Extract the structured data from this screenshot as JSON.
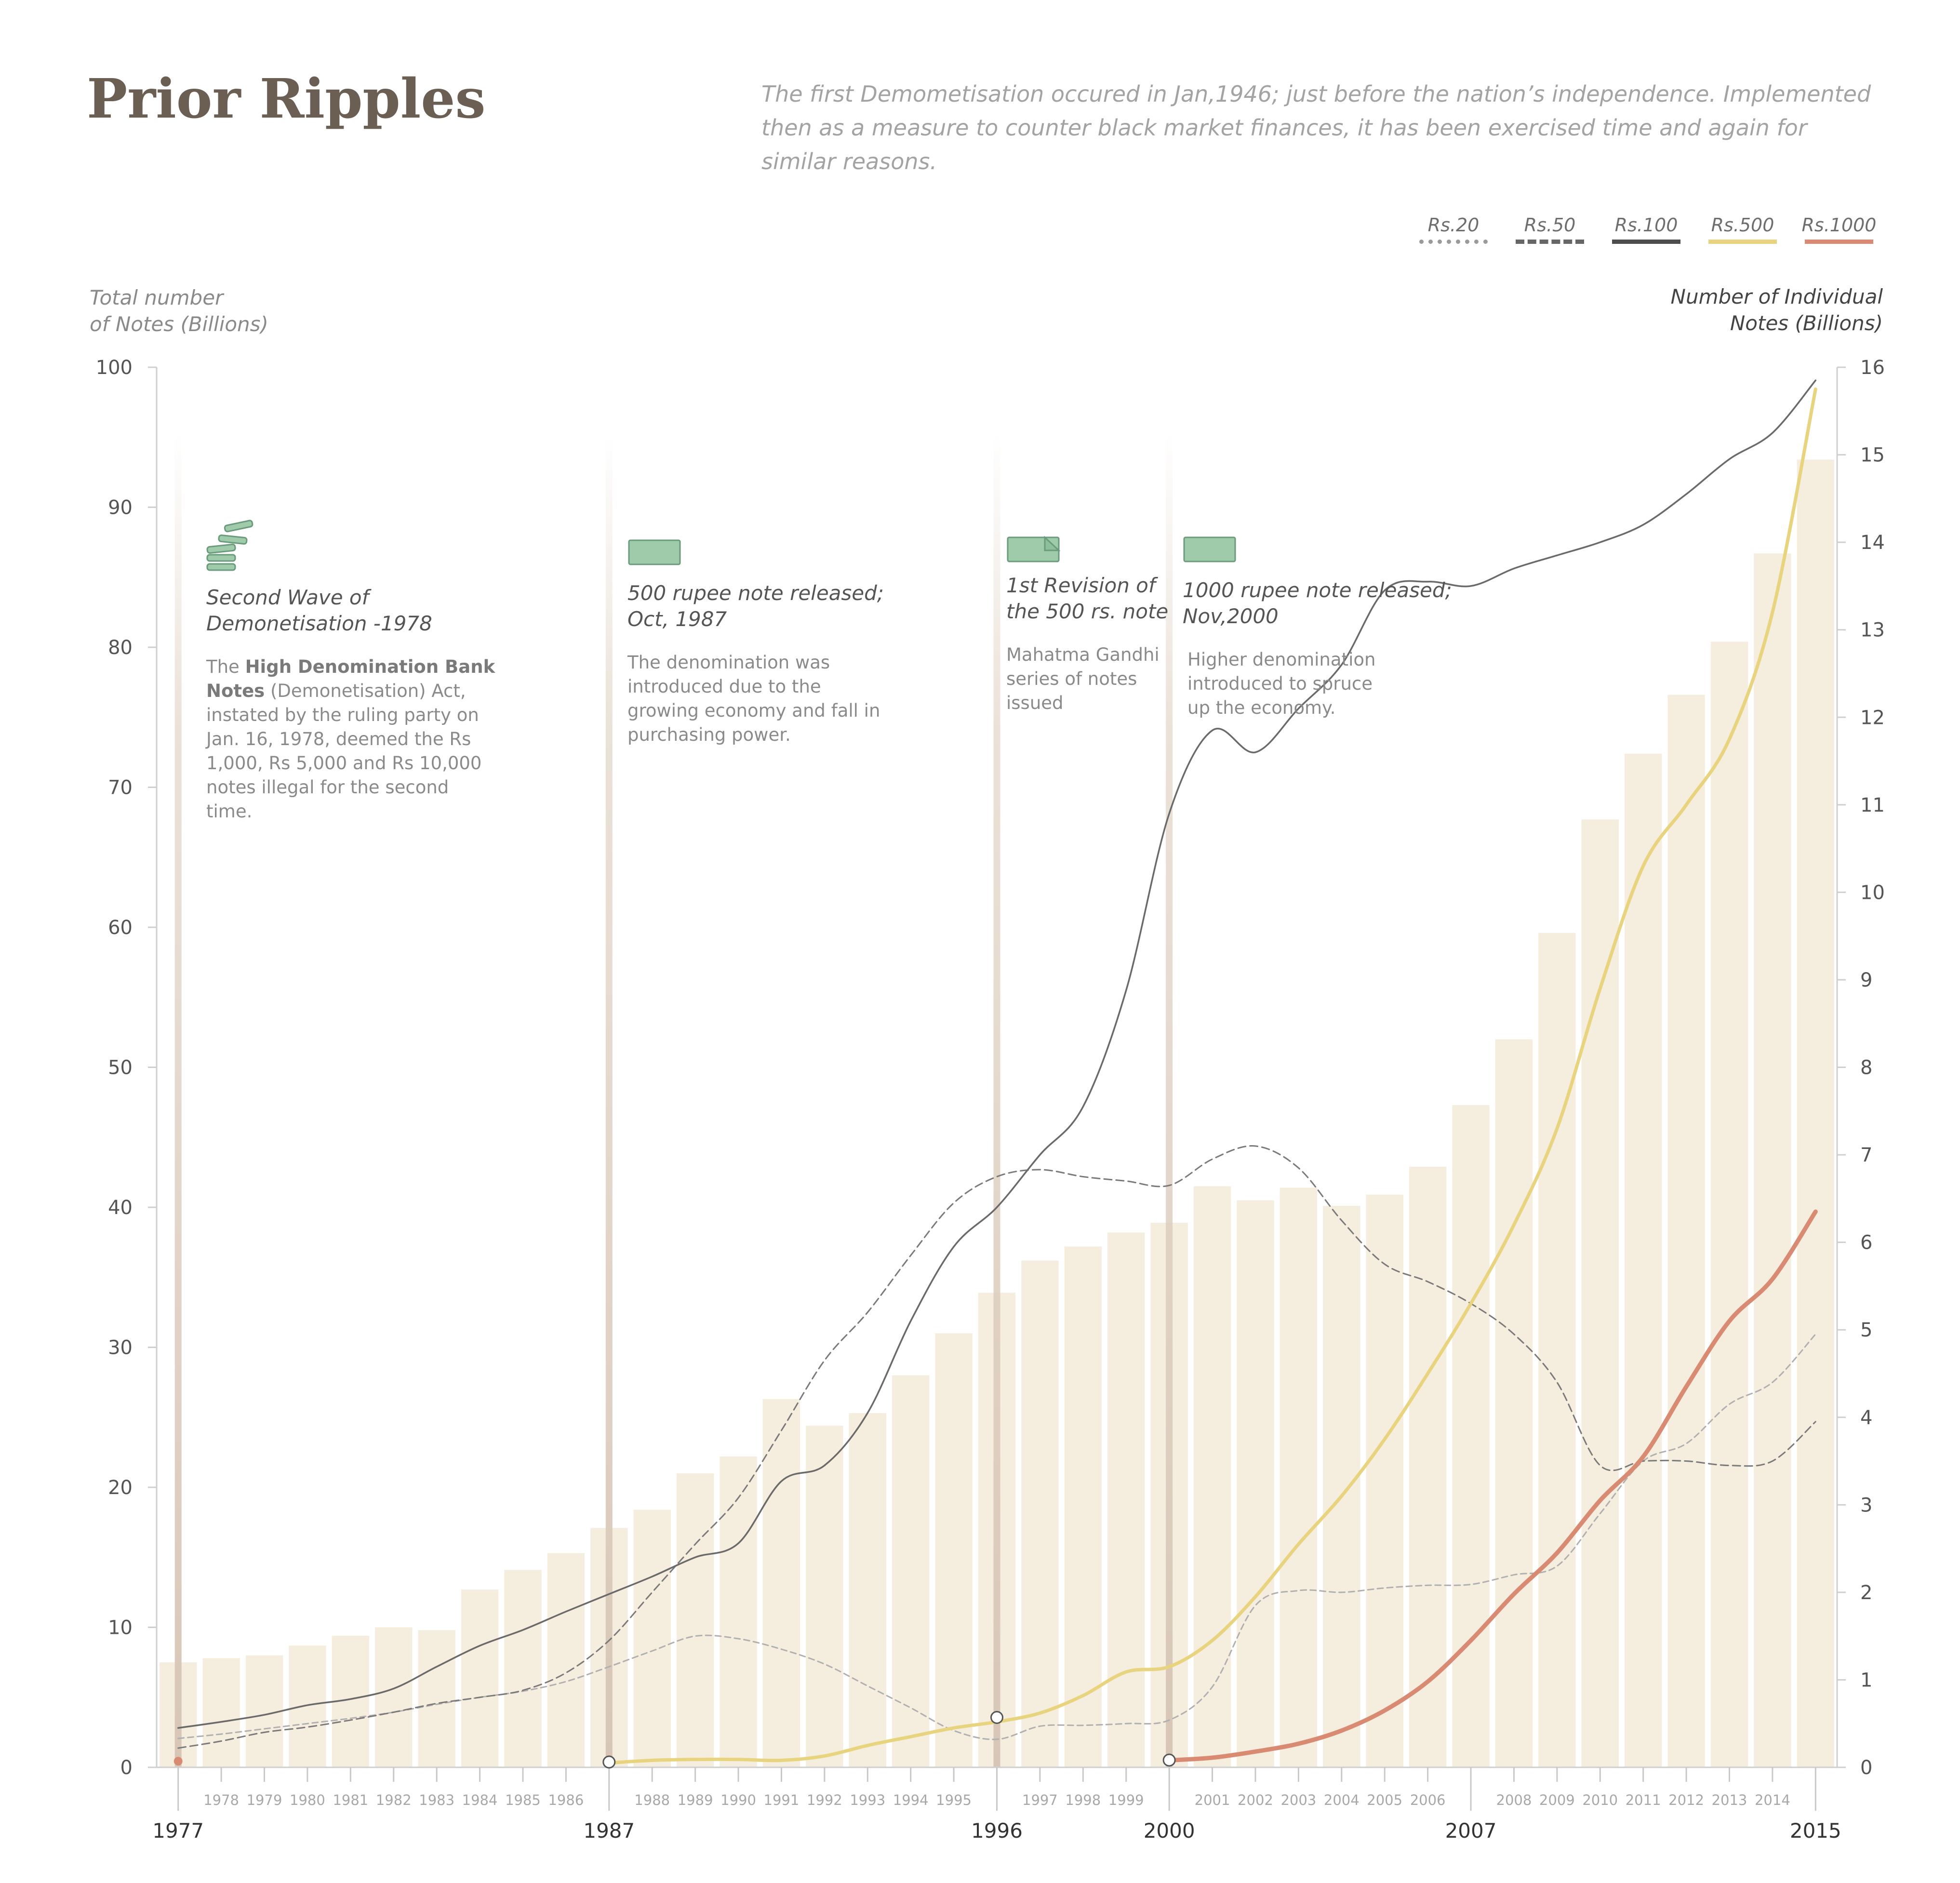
{
  "header": {
    "title": "Prior Ripples",
    "subtitle": "The first Demometisation occured in Jan,1946; just before the nation’s independence. Implemented then as a measure to counter black market finances, it has been exercised time and again for similar reasons."
  },
  "legend": [
    {
      "label": "Rs.20",
      "color": "#9a9a9a",
      "style": "dotted"
    },
    {
      "label": "Rs.50",
      "color": "#666666",
      "style": "dashed"
    },
    {
      "label": "Rs.100",
      "color": "#4d4d4d",
      "style": "solid"
    },
    {
      "label": "Rs.500",
      "color": "#e8d47e",
      "style": "solid"
    },
    {
      "label": "Rs.1000",
      "color": "#d98a73",
      "style": "solid"
    }
  ],
  "axes": {
    "left_title_1": "Total number",
    "left_title_2": "of Notes (Billions)",
    "right_title_1": "Number of Individual",
    "right_title_2": "Notes (Billions)"
  },
  "annotations": [
    {
      "icon": "stacked-notes-icon",
      "title_1": "Second Wave of",
      "title_2": "Demonetisation -1978",
      "text_a": "The ",
      "text_b": "High Denomination Bank Notes",
      "text_c": " (Demonetisation) Act, instated by the ruling party on Jan. 16, 1978, deemed the Rs 1,000, Rs 5,000 and Rs 10,000 notes illegal for the second time."
    },
    {
      "icon": "banknote-icon",
      "title_1": "500 rupee note released;",
      "title_2": "Oct, 1987",
      "text": "The denomination was introduced due to the growing economy and fall in purchasing power."
    },
    {
      "icon": "banknote-revised-icon",
      "title_1": "1st Revision of",
      "title_2": "the 500 rs. note",
      "text": "Mahatma Gandhi series of notes issued"
    },
    {
      "icon": "banknote-icon",
      "title_1": "1000 rupee note released;",
      "title_2": "Nov,2000",
      "text": "Higher denomination introduced to spruce up the economy."
    }
  ],
  "chart_data": {
    "type": "bar",
    "title": "Prior Ripples",
    "ylabel": "Total number of Notes (Billions)",
    "y2label": "Number of Individual Notes (Billions)",
    "ylim": [
      0,
      100
    ],
    "y2lim": [
      0,
      16
    ],
    "y_ticks": [
      "0",
      "10",
      "20",
      "30",
      "40",
      "50",
      "60",
      "70",
      "80",
      "90",
      "100"
    ],
    "y2_ticks": [
      "0",
      "1",
      "2",
      "3",
      "4",
      "5",
      "6",
      "7",
      "8",
      "9",
      "10",
      "11",
      "12",
      "13",
      "14",
      "15",
      "16"
    ],
    "categories": [
      "1977",
      "1978",
      "1979",
      "1980",
      "1981",
      "1982",
      "1983",
      "1984",
      "1985",
      "1986",
      "1987",
      "1988",
      "1989",
      "1990",
      "1991",
      "1992",
      "1993",
      "1994",
      "1995",
      "1996",
      "1997",
      "1998",
      "1999",
      "2000",
      "2001",
      "2002",
      "2003",
      "2004",
      "2005",
      "2006",
      "2007",
      "2008",
      "2009",
      "2010",
      "2011",
      "2012",
      "2013",
      "2014",
      "2015"
    ],
    "major_years": [
      "1977",
      "1987",
      "1996",
      "2000",
      "2007",
      "2015"
    ],
    "event_years": [
      "1977",
      "1987",
      "1996",
      "2000"
    ],
    "bars": {
      "name": "Total number of Notes",
      "color": "#f5edde",
      "values": [
        7.5,
        7.8,
        8.0,
        8.7,
        9.4,
        10.0,
        9.8,
        12.7,
        14.1,
        15.3,
        17.1,
        18.4,
        21.0,
        22.2,
        26.3,
        24.4,
        25.3,
        28.0,
        31.0,
        33.9,
        36.2,
        37.2,
        38.2,
        38.9,
        41.5,
        40.5,
        41.4,
        40.1,
        40.9,
        42.9,
        47.3,
        52.0,
        59.6,
        67.7,
        72.4,
        76.6,
        80.4,
        86.7,
        93.4
      ]
    },
    "series": [
      {
        "name": "Rs.20",
        "axis": "right",
        "color": "#b0b0b0",
        "dash": "12 8",
        "values": [
          0.33,
          0.38,
          0.44,
          0.5,
          0.56,
          0.63,
          0.72,
          0.8,
          0.87,
          0.98,
          1.15,
          1.33,
          1.5,
          1.47,
          1.35,
          1.18,
          0.93,
          0.68,
          0.42,
          0.32,
          0.47,
          0.48,
          0.5,
          0.54,
          0.92,
          1.85,
          2.02,
          2.0,
          2.05,
          2.08,
          2.09,
          2.2,
          2.3,
          2.9,
          3.5,
          3.7,
          4.15,
          4.4,
          4.95
        ]
      },
      {
        "name": "Rs.50",
        "axis": "right",
        "color": "#7a7a7a",
        "dash": "16 9",
        "values": [
          0.22,
          0.3,
          0.4,
          0.46,
          0.54,
          0.63,
          0.73,
          0.8,
          0.88,
          1.08,
          1.45,
          2.0,
          2.55,
          3.08,
          3.85,
          4.65,
          5.2,
          5.85,
          6.45,
          6.75,
          6.83,
          6.75,
          6.7,
          6.65,
          6.95,
          7.1,
          6.85,
          6.25,
          5.75,
          5.55,
          5.3,
          4.95,
          4.4,
          3.45,
          3.5,
          3.5,
          3.45,
          3.5,
          3.95
        ]
      },
      {
        "name": "Rs.100",
        "axis": "right",
        "color": "#6a6a6a",
        "dash": "",
        "values": [
          0.45,
          0.52,
          0.6,
          0.71,
          0.78,
          0.9,
          1.15,
          1.39,
          1.57,
          1.78,
          1.98,
          2.18,
          2.4,
          2.56,
          3.27,
          3.45,
          4.05,
          5.1,
          5.95,
          6.4,
          7.0,
          7.55,
          8.88,
          10.9,
          11.85,
          11.6,
          12.1,
          12.6,
          13.45,
          13.55,
          13.5,
          13.7,
          13.85,
          14.0,
          14.2,
          14.55,
          14.95,
          15.25,
          15.85
        ]
      },
      {
        "name": "Rs.500",
        "axis": "right",
        "color": "#e8d47e",
        "dash": "",
        "values": [
          null,
          null,
          null,
          null,
          null,
          null,
          null,
          null,
          null,
          null,
          0.05,
          0.08,
          0.09,
          0.09,
          0.08,
          0.13,
          0.25,
          0.35,
          0.45,
          0.52,
          0.62,
          0.82,
          1.09,
          1.15,
          1.45,
          1.95,
          2.55,
          3.1,
          3.75,
          4.5,
          5.3,
          6.2,
          7.3,
          8.9,
          10.3,
          11.0,
          11.75,
          13.2,
          15.75
        ]
      },
      {
        "name": "Rs.1000",
        "axis": "right",
        "color": "#d98a73",
        "dash": "",
        "values": [
          0.07,
          null,
          null,
          null,
          null,
          null,
          null,
          null,
          null,
          null,
          null,
          null,
          null,
          null,
          null,
          null,
          null,
          null,
          null,
          null,
          null,
          null,
          null,
          0.08,
          0.11,
          0.18,
          0.27,
          0.42,
          0.65,
          0.98,
          1.45,
          1.98,
          2.45,
          3.05,
          3.55,
          4.35,
          5.1,
          5.58,
          6.35
        ]
      }
    ],
    "grid": false,
    "legend_position": "top-right"
  }
}
